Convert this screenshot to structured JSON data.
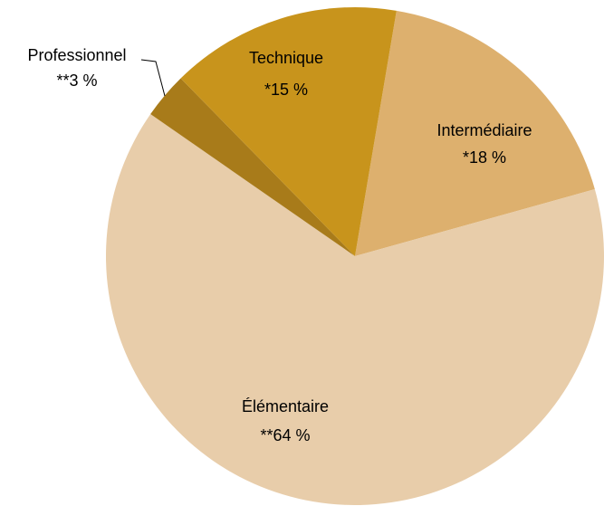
{
  "chart_data": {
    "type": "pie",
    "categories": [
      "Intermédiaire",
      "Élémentaire",
      "Professionnel",
      "Technique"
    ],
    "values": [
      18,
      64,
      3,
      15
    ],
    "value_labels": [
      "*18 %",
      "**64 %",
      "**3 %",
      "*15 %"
    ],
    "colors": [
      "#ddb06e",
      "#e8cdaa",
      "#a87b1a",
      "#c8941c"
    ]
  }
}
